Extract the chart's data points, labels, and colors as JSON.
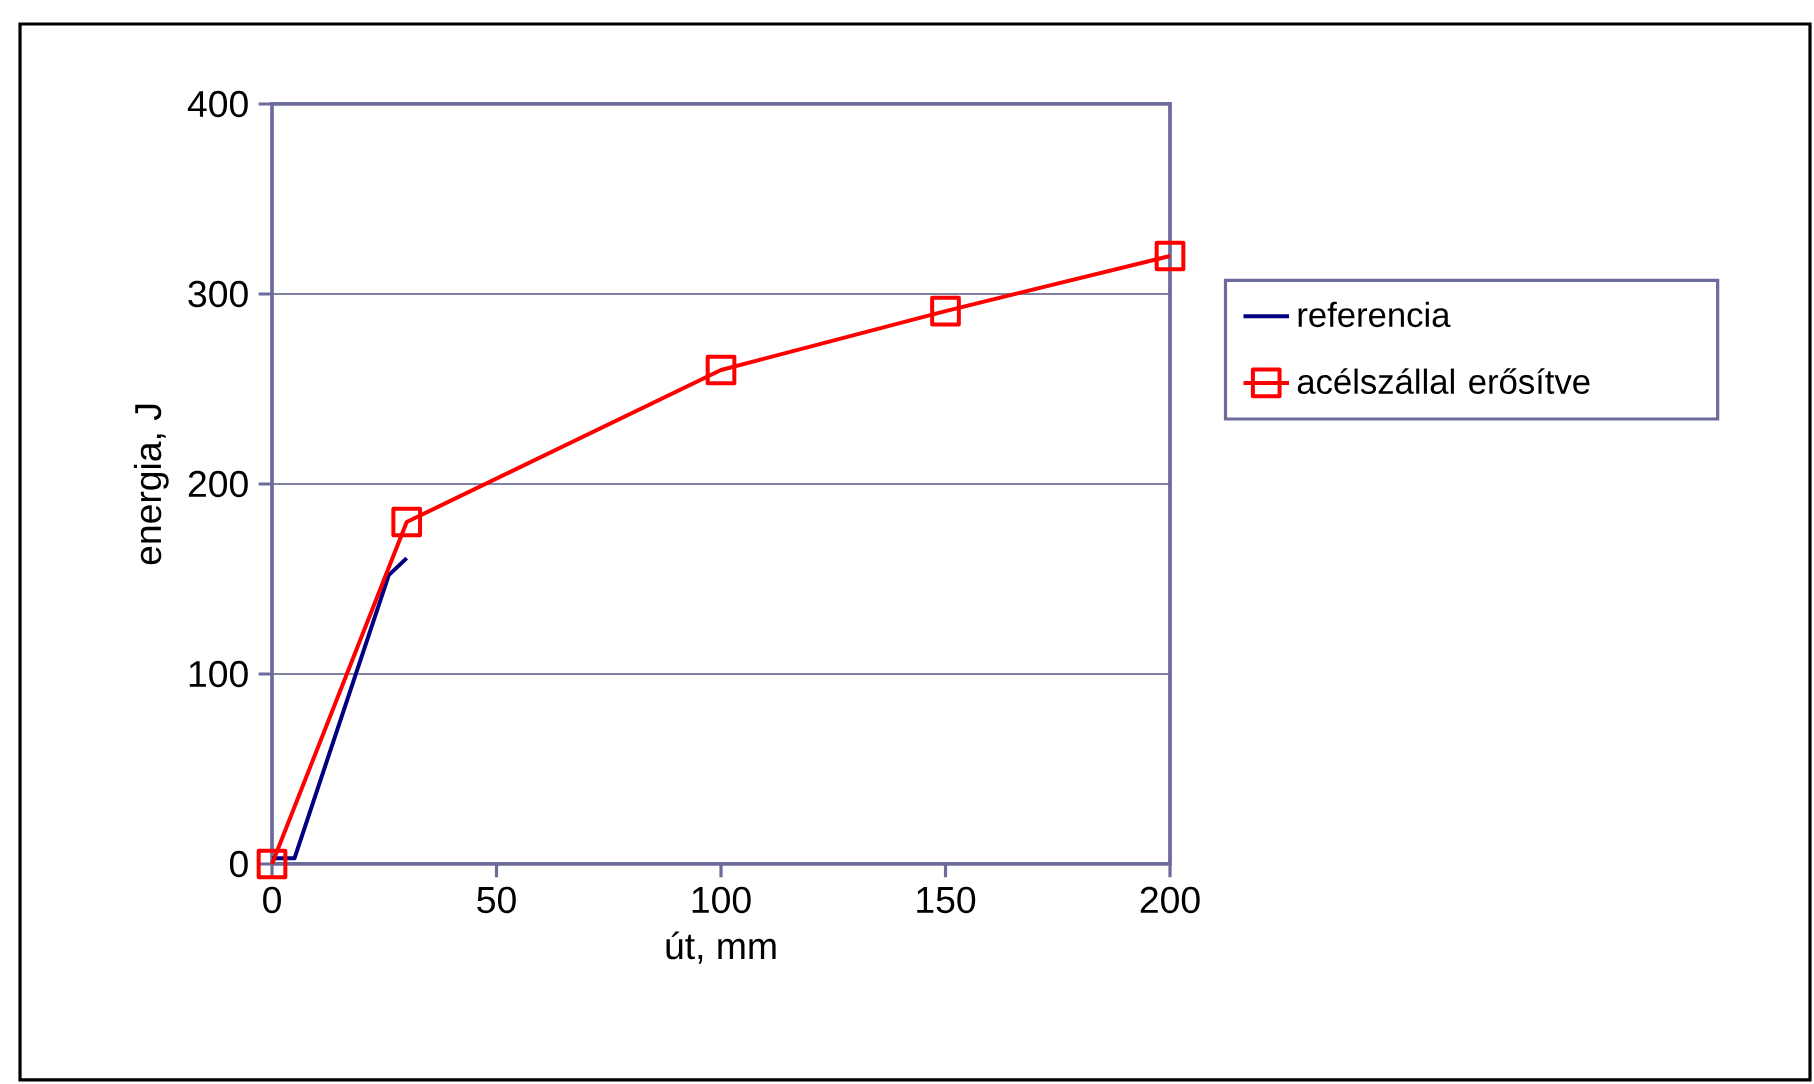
{
  "chart_data": {
    "type": "line",
    "xlabel": "út, mm",
    "ylabel": "energia, J",
    "xlim": [
      0,
      200
    ],
    "xticks": [
      0,
      50,
      100,
      150,
      200
    ],
    "ylim": [
      0,
      400
    ],
    "yticks": [
      0,
      100,
      200,
      300,
      400
    ],
    "grid": "y",
    "legend": "right",
    "line_style": "solid",
    "series": [
      {
        "name": "referencia",
        "color": "#000080",
        "marker": "none",
        "x": [
          0,
          5,
          26,
          30
        ],
        "values": [
          3,
          3,
          152,
          161
        ]
      },
      {
        "name": "acélszállal erősítve",
        "color": "#ff0000",
        "marker": "square",
        "x": [
          0,
          30,
          100,
          150,
          200
        ],
        "values": [
          0,
          180,
          260,
          291,
          320
        ]
      }
    ]
  }
}
